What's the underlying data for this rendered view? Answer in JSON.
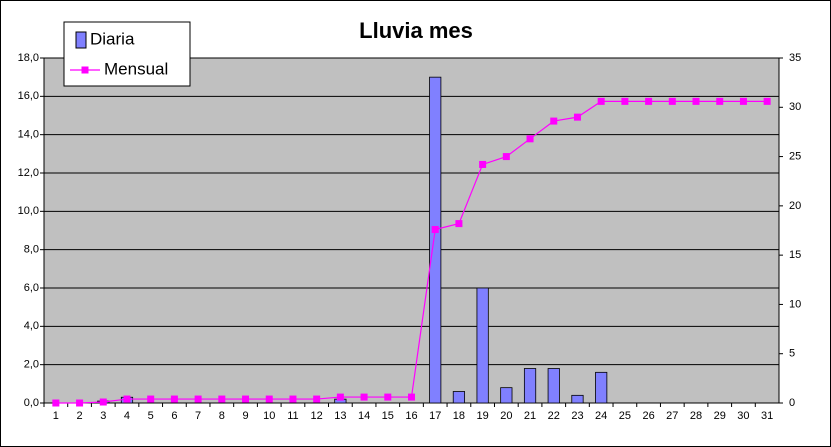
{
  "chart_data": {
    "type": "bar-line",
    "title": "Lluvia mes",
    "categories": [
      "1",
      "2",
      "3",
      "4",
      "5",
      "6",
      "7",
      "8",
      "9",
      "10",
      "11",
      "12",
      "13",
      "14",
      "15",
      "16",
      "17",
      "18",
      "19",
      "20",
      "21",
      "22",
      "23",
      "24",
      "25",
      "26",
      "27",
      "28",
      "29",
      "30",
      "31"
    ],
    "series": [
      {
        "name": "Diaria",
        "type": "bar",
        "color": "#8080ff",
        "axis": "y",
        "values": [
          0,
          0,
          0.1,
          0.3,
          0,
          0,
          0,
          0,
          0,
          0,
          0,
          0,
          0.2,
          0,
          0,
          0,
          17.0,
          0.6,
          6.0,
          0.8,
          1.8,
          1.8,
          0.4,
          1.6,
          0,
          0,
          0,
          0,
          0,
          0,
          0
        ]
      },
      {
        "name": "Mensual",
        "type": "line",
        "color": "#ff00ff",
        "axis": "y2",
        "values": [
          0,
          0,
          0.1,
          0.4,
          0.4,
          0.4,
          0.4,
          0.4,
          0.4,
          0.4,
          0.4,
          0.4,
          0.6,
          0.6,
          0.6,
          0.6,
          17.6,
          18.2,
          24.2,
          25.0,
          26.8,
          28.6,
          29.0,
          30.6,
          30.6,
          30.6,
          30.6,
          30.6,
          30.6,
          30.6,
          30.6
        ]
      }
    ],
    "ylim": [
      0,
      18
    ],
    "yticks": [
      {
        "value": 0,
        "label": "0,0"
      },
      {
        "value": 2,
        "label": "2,0"
      },
      {
        "value": 4,
        "label": "4,0"
      },
      {
        "value": 6,
        "label": "6,0"
      },
      {
        "value": 8,
        "label": "8,0"
      },
      {
        "value": 10,
        "label": "10,0"
      },
      {
        "value": 12,
        "label": "12,0"
      },
      {
        "value": 14,
        "label": "14,0"
      },
      {
        "value": 16,
        "label": "16,0"
      },
      {
        "value": 18,
        "label": "18,0"
      }
    ],
    "y2lim": [
      0,
      35
    ],
    "y2ticks": [
      0,
      5,
      10,
      15,
      20,
      25,
      30,
      35
    ],
    "grid": true,
    "legend": "top-left",
    "background": "#c0c0c0"
  }
}
